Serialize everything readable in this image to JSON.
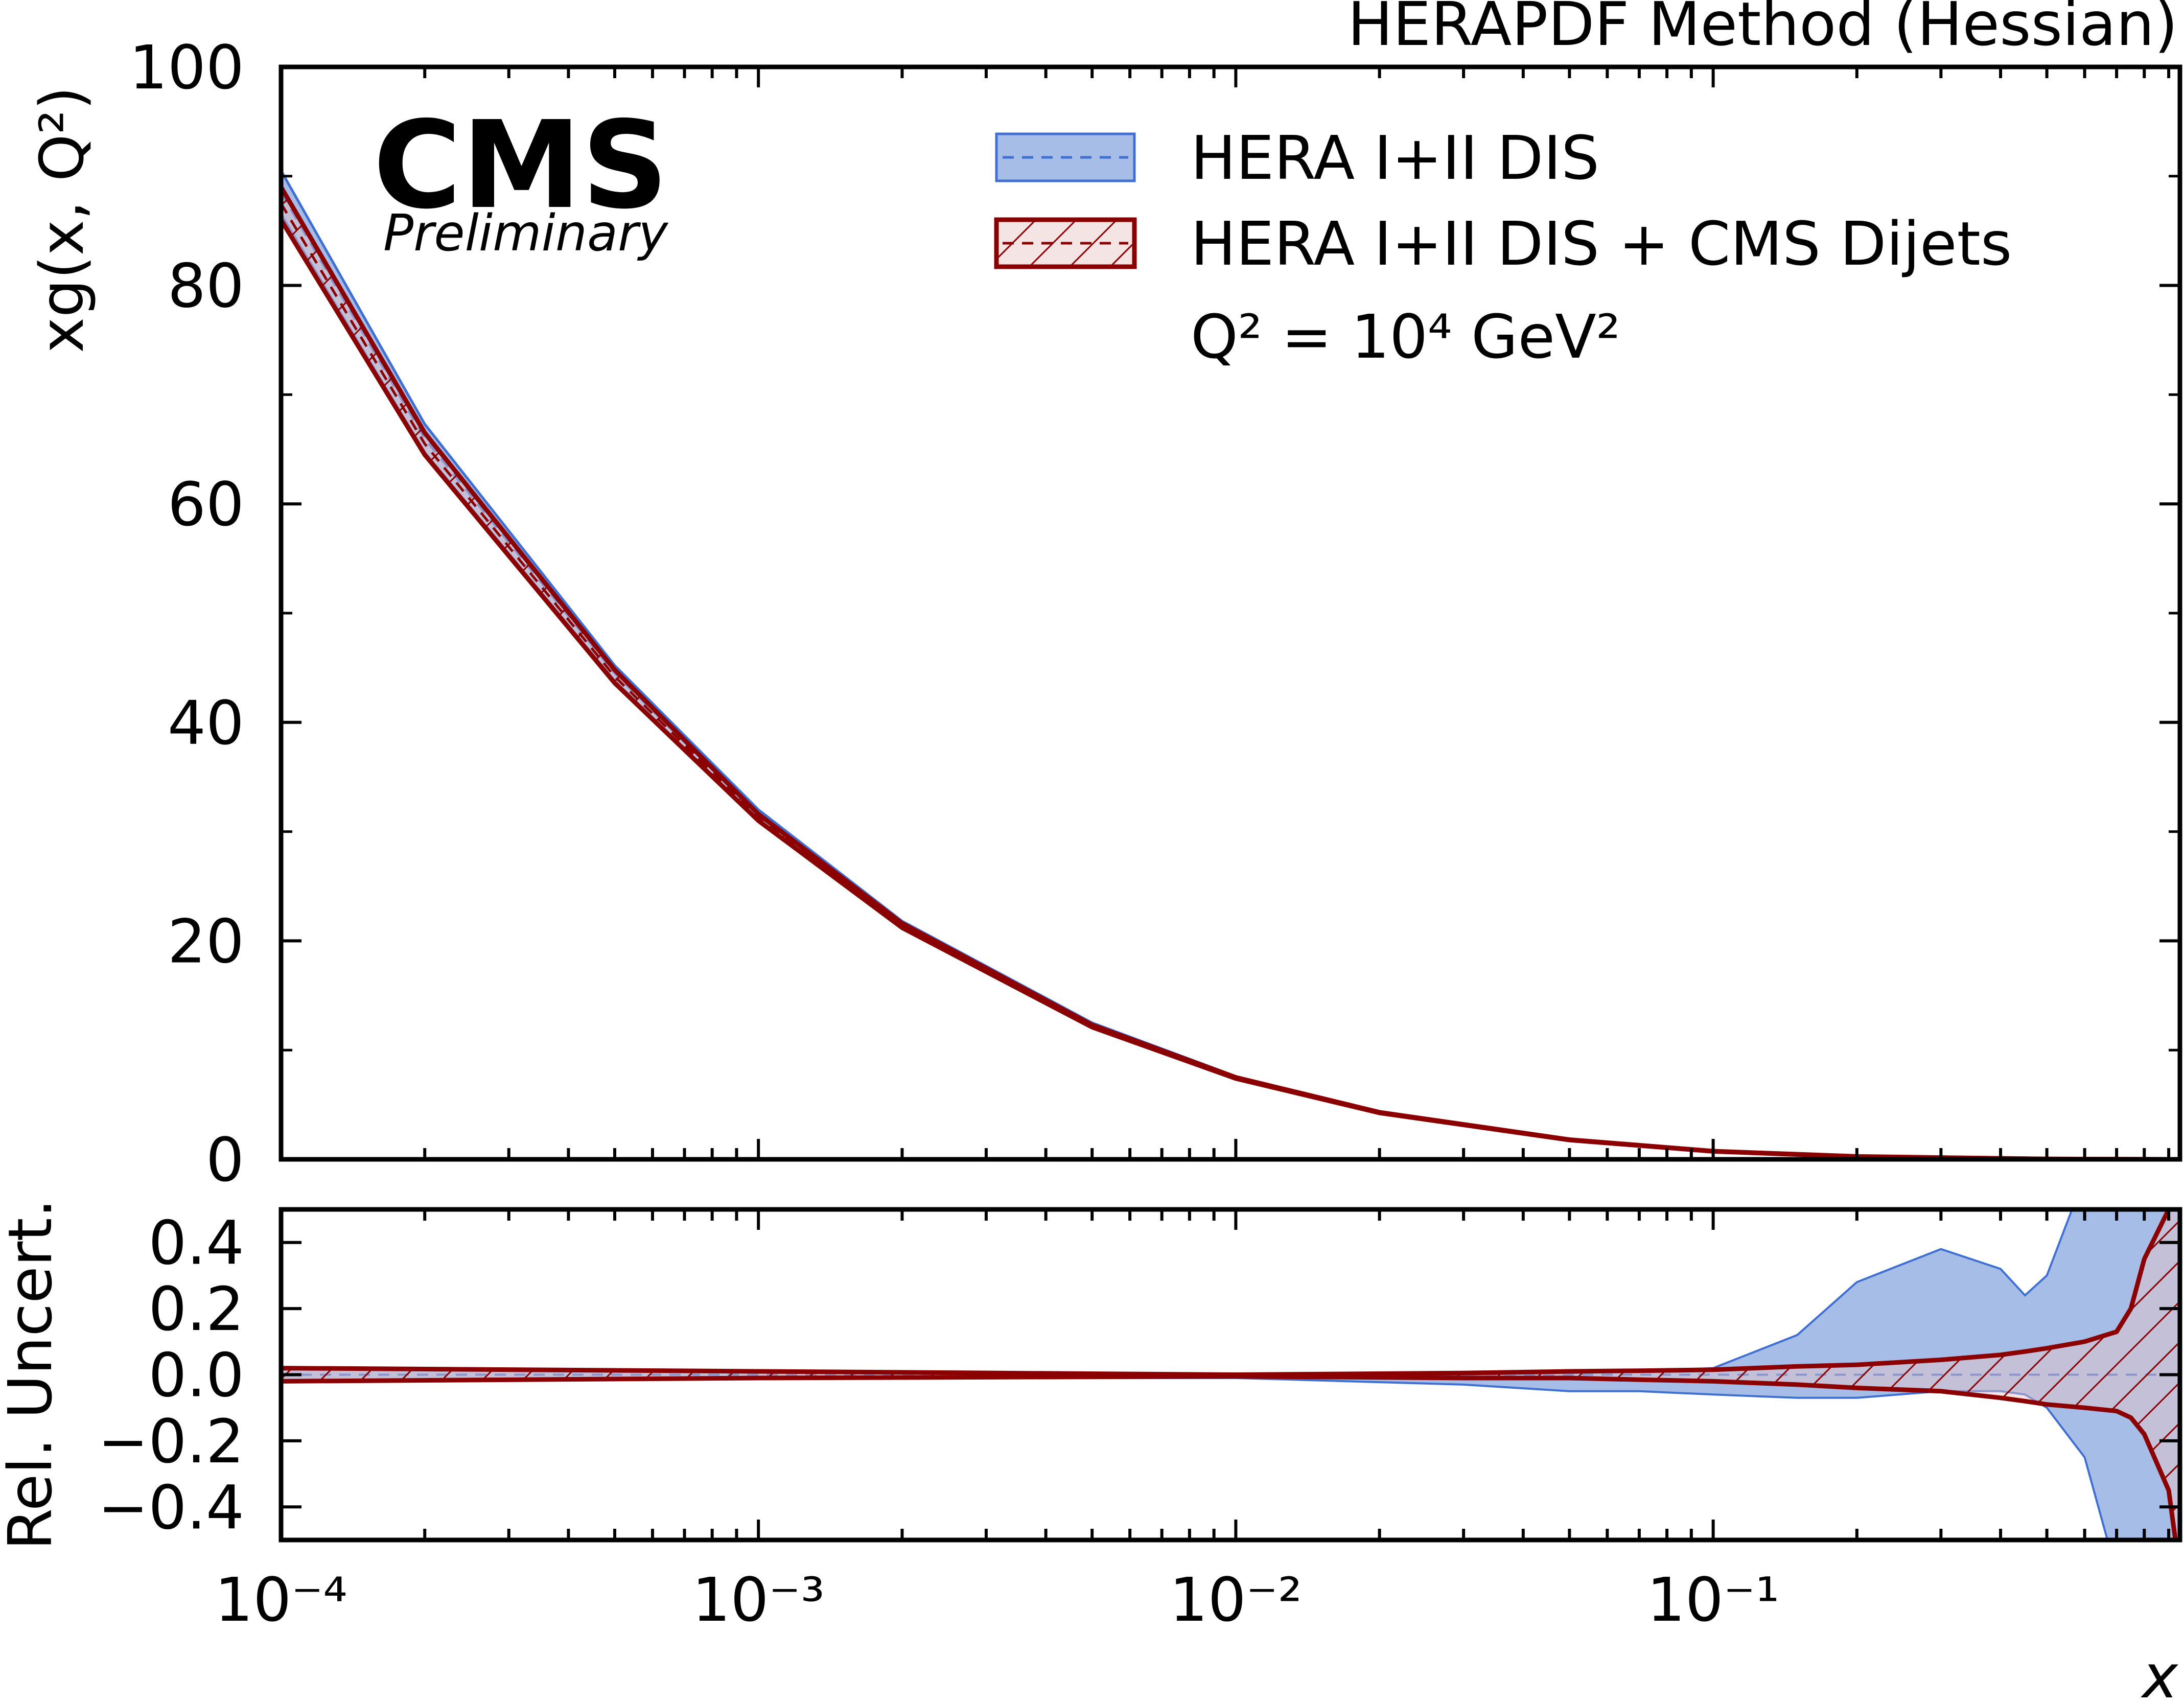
{
  "header": {
    "method_title": "HERAPDF Method (Hessian)",
    "experiment": "CMS",
    "status": "Preliminary"
  },
  "legend": {
    "entries": [
      "HERA I+II DIS",
      "HERA I+II DIS + CMS Dijets"
    ],
    "scale_label": "Q² = 10⁴ GeV²"
  },
  "colors": {
    "dis_fill": "#a6bde8",
    "dis_line": "#3f6fd1",
    "dijet_line": "#8b0000",
    "dijet_fill": "#e9c4c4"
  },
  "chart_data": [
    {
      "type": "area",
      "title": "",
      "ylabel": "xg(x, Q²)",
      "xscale": "log",
      "xlim": [
        0.0001,
        0.95
      ],
      "ylim": [
        0,
        100
      ],
      "y_ticks": [
        "0",
        "20",
        "40",
        "60",
        "80",
        "100"
      ],
      "x": [
        0.0001,
        0.0002,
        0.0005,
        0.001,
        0.002,
        0.005,
        0.01,
        0.02,
        0.05,
        0.1,
        0.2,
        0.5,
        0.9
      ],
      "series": [
        {
          "name": "HERA I+II DIS",
          "central": [
            88.5,
            66.0,
            44.5,
            31.5,
            21.5,
            12.3,
            7.5,
            4.3,
            1.8,
            0.75,
            0.25,
            0.03,
            0.0
          ],
          "upper": [
            90.5,
            67.3,
            45.2,
            32.0,
            21.8,
            12.5,
            7.6,
            4.35,
            1.83,
            0.77,
            0.33,
            0.04,
            0.01
          ],
          "lower": [
            86.5,
            64.7,
            43.8,
            31.0,
            21.2,
            12.1,
            7.4,
            4.25,
            1.77,
            0.73,
            0.2,
            0.02,
            0.0
          ]
        },
        {
          "name": "HERA I+II DIS + CMS Dijets",
          "central": [
            87.5,
            65.5,
            44.2,
            31.3,
            21.4,
            12.2,
            7.45,
            4.28,
            1.79,
            0.74,
            0.25,
            0.03,
            0.0
          ],
          "upper": [
            89.0,
            66.5,
            44.8,
            31.6,
            21.6,
            12.3,
            7.5,
            4.31,
            1.8,
            0.75,
            0.26,
            0.033,
            0.002
          ],
          "lower": [
            86.0,
            64.5,
            43.6,
            31.0,
            21.2,
            12.1,
            7.4,
            4.25,
            1.77,
            0.73,
            0.24,
            0.027,
            0.0
          ]
        }
      ]
    },
    {
      "type": "area",
      "title": "",
      "xlabel": "x",
      "ylabel": "Rel. Uncert.",
      "xscale": "log",
      "xlim": [
        0.0001,
        0.95
      ],
      "ylim": [
        -0.5,
        0.5
      ],
      "y_ticks": [
        "−0.4",
        "−0.2",
        "0.0",
        "0.2",
        "0.4"
      ],
      "x_ticks": [
        "10⁻⁴",
        "10⁻³",
        "10⁻²",
        "10⁻¹"
      ],
      "x_tick_values": [
        0.0001,
        0.001,
        0.01,
        0.1
      ],
      "x": [
        0.0001,
        0.001,
        0.01,
        0.03,
        0.05,
        0.07,
        0.1,
        0.15,
        0.2,
        0.3,
        0.4,
        0.45,
        0.5,
        0.6,
        0.7,
        0.75,
        0.8,
        0.9,
        0.95
      ],
      "series": [
        {
          "name": "HERA I+II DIS",
          "upper": [
            0.02,
            0.01,
            0.0,
            0.0,
            0.005,
            0.01,
            0.02,
            0.12,
            0.28,
            0.38,
            0.32,
            0.24,
            0.3,
            0.6,
            0.6,
            0.6,
            0.6,
            0.6,
            0.6
          ],
          "lower": [
            -0.02,
            -0.01,
            -0.01,
            -0.03,
            -0.05,
            -0.05,
            -0.06,
            -0.07,
            -0.07,
            -0.05,
            -0.05,
            -0.06,
            -0.1,
            -0.25,
            -0.6,
            -0.6,
            -0.6,
            -0.6,
            -0.6
          ]
        },
        {
          "name": "HERA I+II DIS + CMS Dijets",
          "upper": [
            0.02,
            0.01,
            0.0,
            0.005,
            0.01,
            0.012,
            0.015,
            0.025,
            0.03,
            0.045,
            0.06,
            0.07,
            0.08,
            0.1,
            0.13,
            0.2,
            0.35,
            0.5,
            0.6
          ],
          "lower": [
            -0.02,
            -0.01,
            -0.005,
            -0.01,
            -0.01,
            -0.015,
            -0.02,
            -0.03,
            -0.04,
            -0.05,
            -0.07,
            -0.08,
            -0.09,
            -0.1,
            -0.11,
            -0.13,
            -0.18,
            -0.35,
            -0.6
          ]
        }
      ]
    }
  ]
}
